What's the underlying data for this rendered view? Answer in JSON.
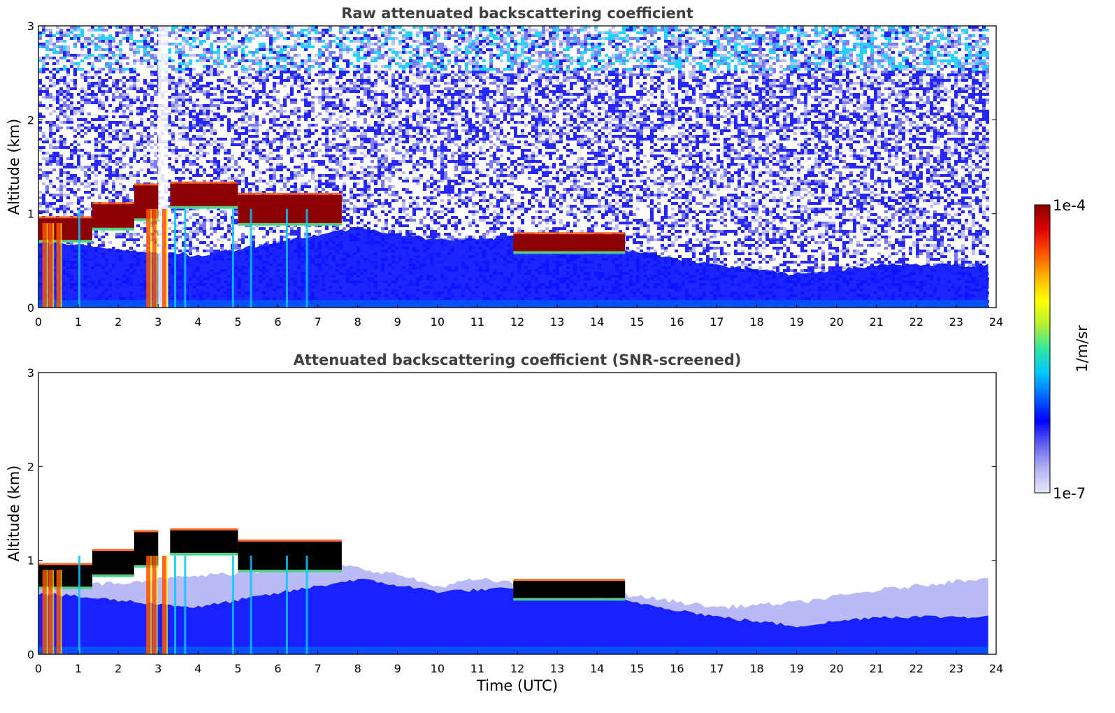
{
  "chart_data": [
    {
      "type": "heatmap",
      "title": "Raw attenuated backscattering coefficient",
      "xlabel": "",
      "ylabel": "Altitude (km)",
      "xlim": [
        0,
        24
      ],
      "ylim": [
        0,
        3
      ],
      "xticks": [
        "0",
        "1",
        "2",
        "3",
        "4",
        "5",
        "6",
        "7",
        "8",
        "9",
        "10",
        "11",
        "12",
        "13",
        "14",
        "15",
        "16",
        "17",
        "18",
        "19",
        "20",
        "21",
        "22",
        "23",
        "24"
      ],
      "yticks": [
        "0",
        "1",
        "2",
        "3"
      ],
      "data_end_hour": 23.8,
      "cloud_layers": [
        {
          "start_h": 0.0,
          "end_h": 1.35,
          "base_km": 0.72,
          "top_km": 0.95
        },
        {
          "start_h": 1.35,
          "end_h": 2.4,
          "base_km": 0.85,
          "top_km": 1.1
        },
        {
          "start_h": 2.4,
          "end_h": 3.0,
          "base_km": 0.95,
          "top_km": 1.3
        },
        {
          "start_h": 3.3,
          "end_h": 5.0,
          "base_km": 1.08,
          "top_km": 1.32
        },
        {
          "start_h": 5.0,
          "end_h": 7.6,
          "base_km": 0.9,
          "top_km": 1.2
        },
        {
          "start_h": 11.9,
          "end_h": 14.7,
          "base_km": 0.6,
          "top_km": 0.78
        }
      ],
      "boundary_layer_top_km": [
        {
          "h": 0,
          "km": 0.7
        },
        {
          "h": 4,
          "km": 0.55
        },
        {
          "h": 8,
          "km": 0.85
        },
        {
          "h": 10,
          "km": 0.72
        },
        {
          "h": 12,
          "km": 0.75
        },
        {
          "h": 15,
          "km": 0.6
        },
        {
          "h": 17,
          "km": 0.45
        },
        {
          "h": 19,
          "km": 0.35
        },
        {
          "h": 21,
          "km": 0.45
        },
        {
          "h": 23.8,
          "km": 0.45
        }
      ]
    },
    {
      "type": "heatmap",
      "title": "Attenuated backscattering coefficient (SNR-screened)",
      "xlabel": "Time (UTC)",
      "ylabel": "Altitude (km)",
      "xlim": [
        0,
        24
      ],
      "ylim": [
        0,
        3
      ],
      "xticks": [
        "0",
        "1",
        "2",
        "3",
        "4",
        "5",
        "6",
        "7",
        "8",
        "9",
        "10",
        "11",
        "12",
        "13",
        "14",
        "15",
        "16",
        "17",
        "18",
        "19",
        "20",
        "21",
        "22",
        "23",
        "24"
      ],
      "yticks": [
        "0",
        "1",
        "2",
        "3"
      ],
      "data_end_hour": 23.8,
      "screened_aerosol_top_km": [
        {
          "h": 0,
          "km": 0.7
        },
        {
          "h": 7.5,
          "km": 0.95
        },
        {
          "h": 9,
          "km": 0.85
        },
        {
          "h": 10,
          "km": 0.72
        },
        {
          "h": 11,
          "km": 0.8
        },
        {
          "h": 15,
          "km": 0.62
        },
        {
          "h": 17,
          "km": 0.5
        },
        {
          "h": 19,
          "km": 0.55
        },
        {
          "h": 21,
          "km": 0.68
        },
        {
          "h": 23.8,
          "km": 0.82
        }
      ]
    }
  ],
  "colorbar": {
    "min_label": "1e-7",
    "max_label": "1e-4",
    "label": "1/m/sr",
    "colors": [
      "#e6e6fa",
      "#b3b3f5",
      "#6464f0",
      "#0000ff",
      "#0064ff",
      "#00c8ff",
      "#32e6a0",
      "#b4f032",
      "#ffff00",
      "#ffb400",
      "#ff5000",
      "#dc0000",
      "#8b0000"
    ]
  }
}
